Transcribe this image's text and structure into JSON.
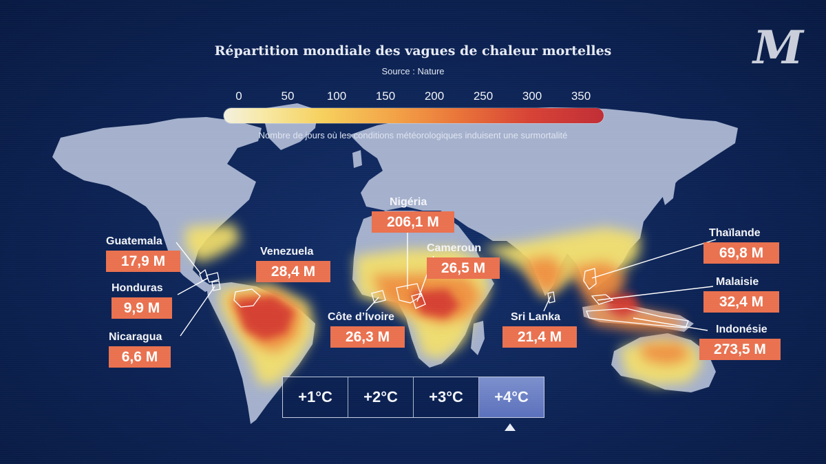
{
  "header": {
    "title": "Répartition mondiale des vagues de chaleur mortelles",
    "source": "Source : Nature",
    "logo_letter": "M"
  },
  "legend": {
    "ticks": [
      "0",
      "50",
      "100",
      "150",
      "200",
      "250",
      "300",
      "350"
    ],
    "range": [
      0,
      350
    ],
    "caption": "Nombre de jours où les conditions météorologiques induisent une surmortalité",
    "colors": [
      "#f3f1e0",
      "#f6d05c",
      "#f3a246",
      "#e97338",
      "#d74335",
      "#c12d35"
    ]
  },
  "countries": [
    {
      "name": "Guatemala",
      "value": "17,9 M"
    },
    {
      "name": "Honduras",
      "value": "9,9 M"
    },
    {
      "name": "Nicaragua",
      "value": "6,6 M"
    },
    {
      "name": "Venezuela",
      "value": "28,4 M"
    },
    {
      "name": "Nigéria",
      "value": "206,1 M"
    },
    {
      "name": "Cameroun",
      "value": "26,5 M"
    },
    {
      "name": "Côte d’Ivoire",
      "value": "26,3 M"
    },
    {
      "name": "Sri Lanka",
      "value": "21,4 M"
    },
    {
      "name": "Thaïlande",
      "value": "69,8 M"
    },
    {
      "name": "Malaisie",
      "value": "32,4 M"
    },
    {
      "name": "Indonésie",
      "value": "273,5 M"
    }
  ],
  "temperature_selector": {
    "options": [
      "+1°C",
      "+2°C",
      "+3°C",
      "+4°C"
    ],
    "selected": "+4°C"
  },
  "theme": {
    "background": "#0c2253",
    "land": "#a4b0cc",
    "label_box": "#e9714f"
  }
}
